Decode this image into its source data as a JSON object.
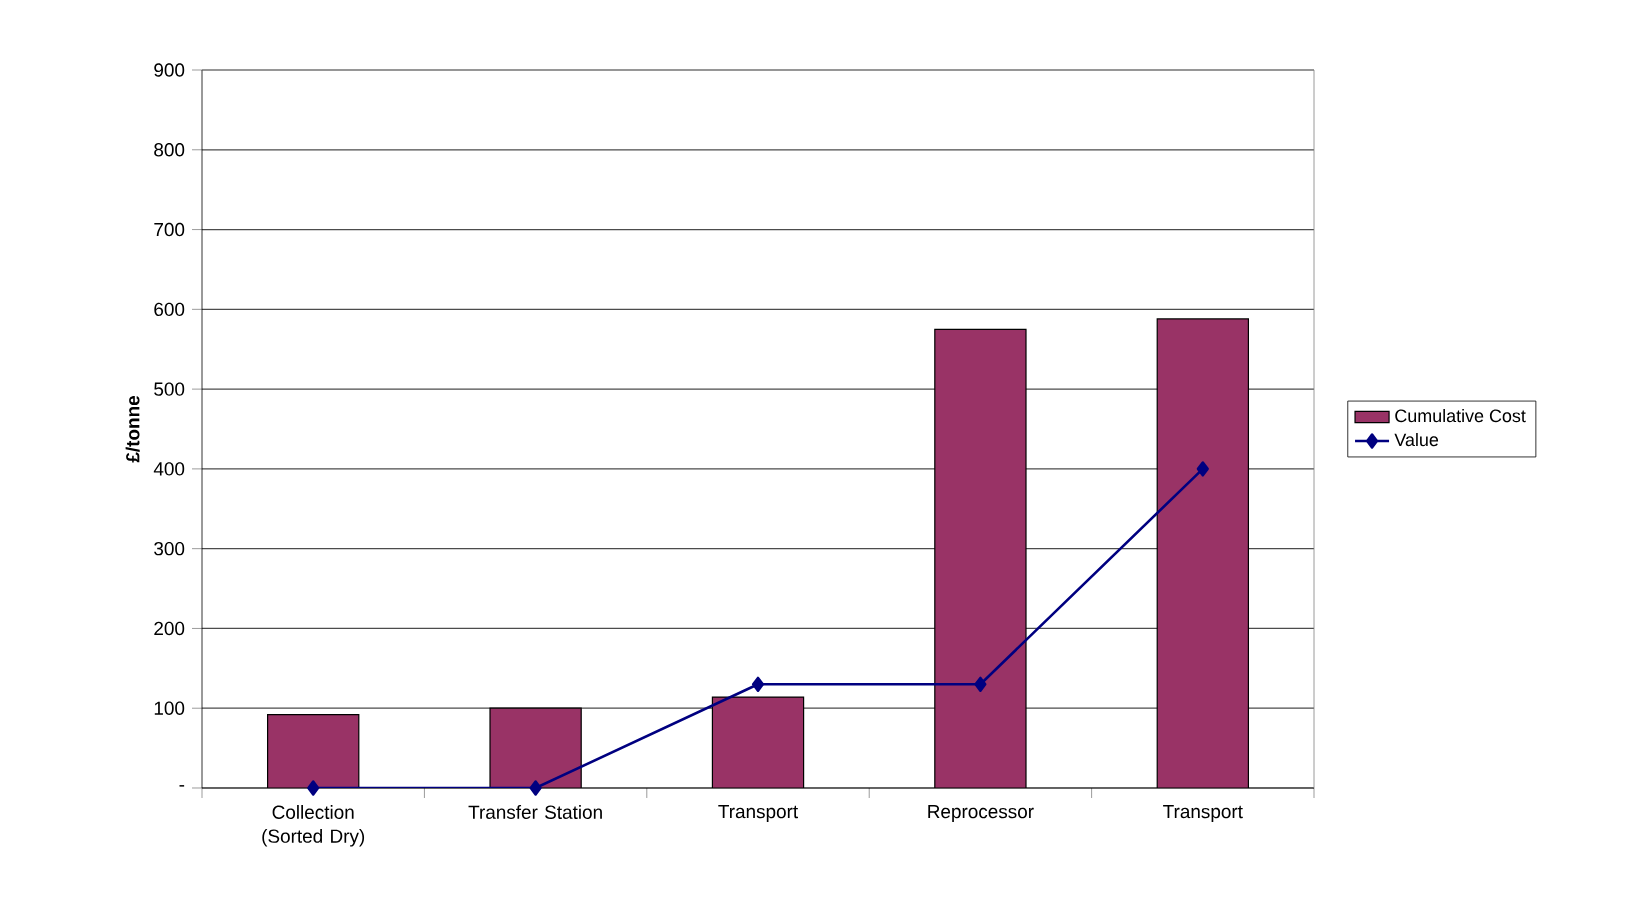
{
  "chart_data": {
    "type": "bar",
    "ylabel": "£/tonne",
    "categories": [
      "Collection\n(Sorted Dry)",
      "Transfer Station",
      "Transport",
      "Reprocessor",
      "Transport"
    ],
    "series": [
      {
        "name": "Cumulative Cost",
        "color": "#993366",
        "values": [
          92,
          100,
          114,
          575,
          588
        ]
      },
      {
        "name": "Value",
        "type": "line",
        "color": "#000080",
        "marker": "diamond",
        "values": [
          0,
          0,
          130,
          130,
          400
        ]
      }
    ],
    "ylim": [
      0,
      900
    ],
    "yticks": [
      {
        "value": 0,
        "label": "-"
      },
      100,
      200,
      300,
      400,
      500,
      600,
      700,
      800,
      900
    ],
    "grid": "y",
    "legend": "right"
  }
}
